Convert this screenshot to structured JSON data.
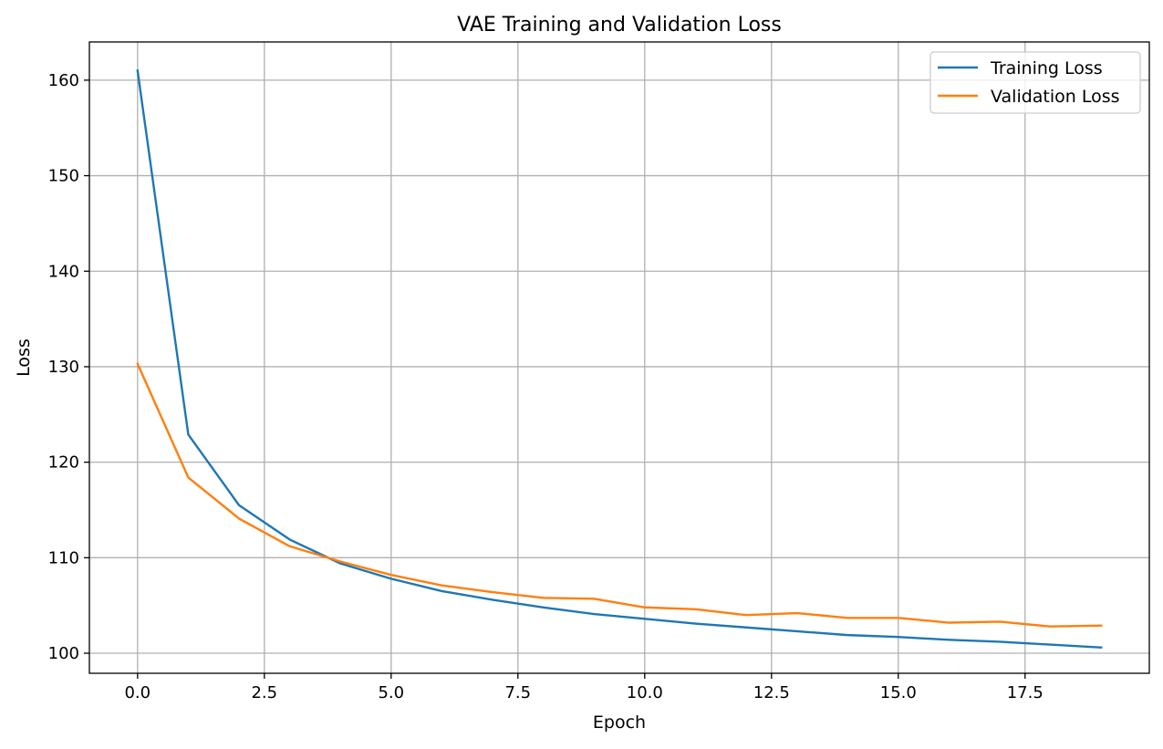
{
  "chart_data": {
    "type": "line",
    "title": "VAE Training and Validation Loss",
    "xlabel": "Epoch",
    "ylabel": "Loss",
    "x": [
      0,
      1,
      2,
      3,
      4,
      5,
      6,
      7,
      8,
      9,
      10,
      11,
      12,
      13,
      14,
      15,
      16,
      17,
      18,
      19
    ],
    "series": [
      {
        "name": "Training Loss",
        "color": "#1f77b4",
        "values": [
          161.0,
          122.9,
          115.5,
          111.9,
          109.4,
          107.8,
          106.5,
          105.6,
          104.8,
          104.1,
          103.6,
          103.1,
          102.7,
          102.3,
          101.9,
          101.7,
          101.4,
          101.2,
          100.9,
          100.6
        ]
      },
      {
        "name": "Validation Loss",
        "color": "#ff7f0e",
        "values": [
          130.3,
          118.4,
          114.1,
          111.2,
          109.6,
          108.2,
          107.1,
          106.4,
          105.8,
          105.7,
          104.8,
          104.6,
          104.0,
          104.2,
          103.7,
          103.7,
          103.2,
          103.3,
          102.8,
          102.9
        ]
      }
    ],
    "xlim": [
      -0.95,
      19.95
    ],
    "ylim": [
      97.9,
      164.0
    ],
    "x_ticks": [
      0.0,
      2.5,
      5.0,
      7.5,
      10.0,
      12.5,
      15.0,
      17.5
    ],
    "x_tick_labels": [
      "0.0",
      "2.5",
      "5.0",
      "7.5",
      "10.0",
      "12.5",
      "15.0",
      "17.5"
    ],
    "y_ticks": [
      100,
      110,
      120,
      130,
      140,
      150,
      160
    ],
    "y_tick_labels": [
      "100",
      "110",
      "120",
      "130",
      "140",
      "150",
      "160"
    ],
    "grid": true,
    "legend_position": "top-right"
  }
}
